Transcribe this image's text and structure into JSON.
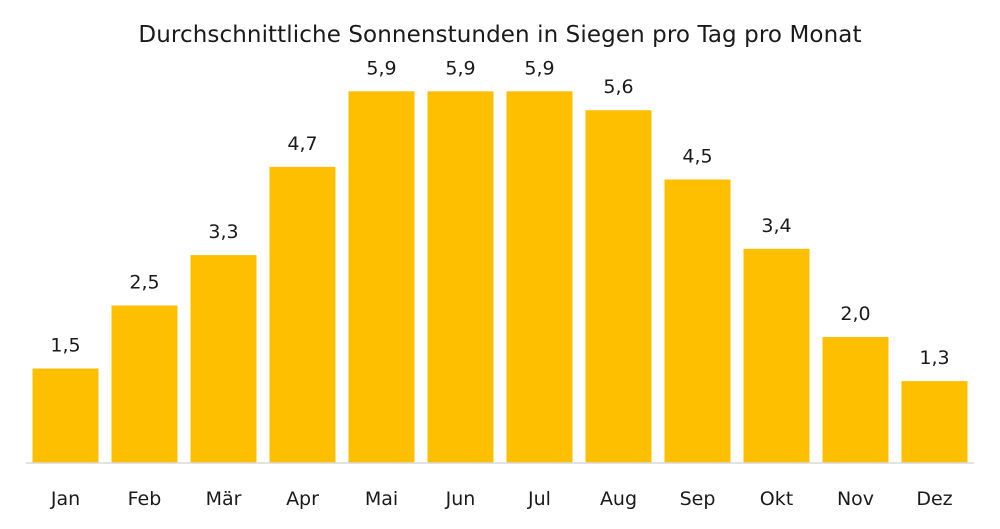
{
  "chart_data": {
    "type": "bar",
    "title": "Durchschnittliche Sonnenstunden in Siegen pro Tag pro Monat",
    "categories": [
      "Jan",
      "Feb",
      "Mär",
      "Apr",
      "Mai",
      "Jun",
      "Jul",
      "Aug",
      "Sep",
      "Okt",
      "Nov",
      "Dez"
    ],
    "values": [
      1.5,
      2.5,
      3.3,
      4.7,
      5.9,
      5.9,
      5.9,
      5.6,
      4.5,
      3.4,
      2.0,
      1.3
    ],
    "value_labels": [
      "1,5",
      "2,5",
      "3,3",
      "4,7",
      "5,9",
      "5,9",
      "5,9",
      "5,6",
      "4,5",
      "3,4",
      "2,0",
      "1,3"
    ],
    "xlabel": "",
    "ylabel": "",
    "ylim": [
      0,
      6
    ],
    "grid": false,
    "legend": "none",
    "bar_color": "#FDBF00"
  }
}
